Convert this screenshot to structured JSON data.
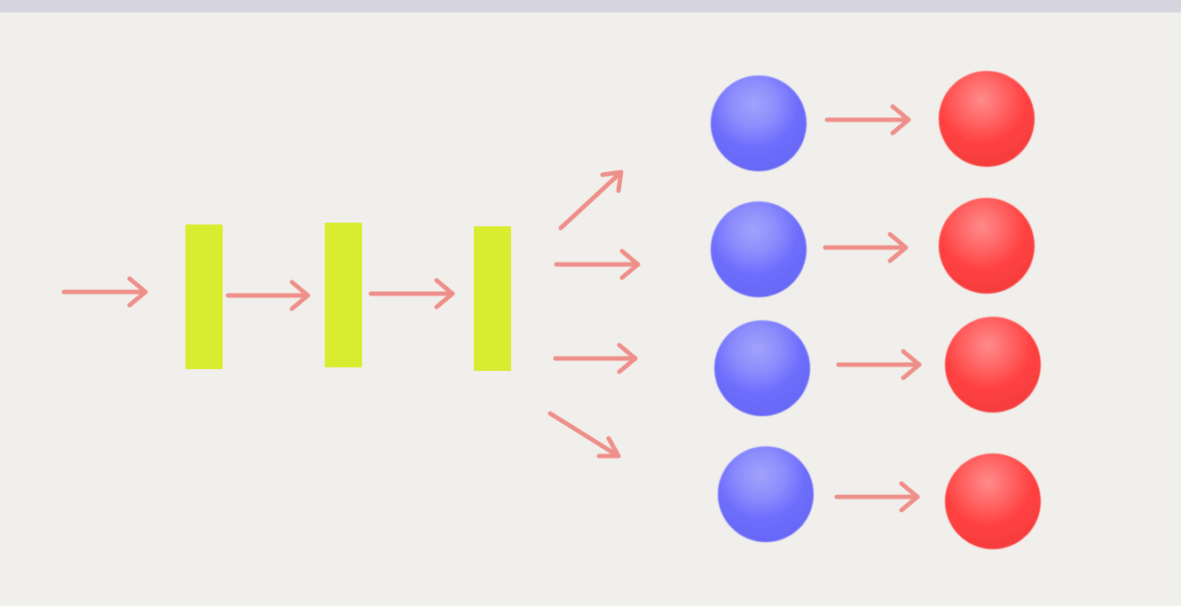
{
  "diagram": {
    "colors": {
      "background": "#f1efeb",
      "top_bar": "#d6d5df",
      "arrow": "#ef8f8a",
      "bar": "#d9ec30",
      "blue_node": "#6f6ffc",
      "red_node": "#ff4444"
    },
    "bars": [
      {
        "id": "bar-1"
      },
      {
        "id": "bar-2"
      },
      {
        "id": "bar-3"
      }
    ],
    "rows": [
      {
        "id": "row-1"
      },
      {
        "id": "row-2"
      },
      {
        "id": "row-3"
      },
      {
        "id": "row-4"
      }
    ]
  }
}
